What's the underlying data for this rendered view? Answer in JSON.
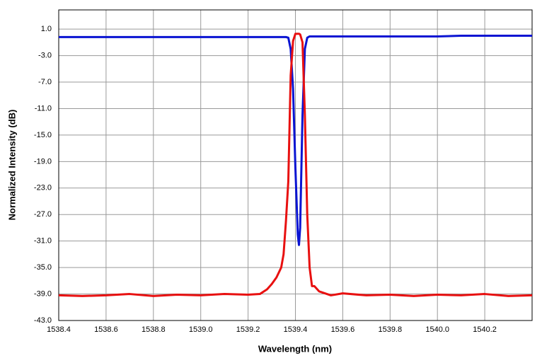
{
  "chart_data": {
    "type": "line",
    "x_label": "Wavelength (nm)",
    "y_label": "Normalized Intensity  (dB)",
    "x": [
      1538.4,
      1538.5,
      1538.6,
      1538.7,
      1538.8,
      1538.9,
      1539.0,
      1539.1,
      1539.2,
      1539.25,
      1539.28,
      1539.3,
      1539.32,
      1539.34,
      1539.35,
      1539.36,
      1539.37,
      1539.38,
      1539.39,
      1539.4,
      1539.41,
      1539.415,
      1539.42,
      1539.43,
      1539.44,
      1539.45,
      1539.46,
      1539.47,
      1539.48,
      1539.5,
      1539.55,
      1539.6,
      1539.7,
      1539.8,
      1539.9,
      1540.0,
      1540.1,
      1540.2,
      1540.3,
      1540.4
    ],
    "series": [
      {
        "color": "#0a14d2",
        "values": [
          -0.2,
          -0.2,
          -0.2,
          -0.2,
          -0.2,
          -0.2,
          -0.2,
          -0.2,
          -0.2,
          -0.2,
          -0.2,
          -0.2,
          -0.2,
          -0.2,
          -0.2,
          -0.2,
          -0.3,
          -2,
          -8,
          -20,
          -30,
          -31.6,
          -29,
          -12,
          -2,
          -0.3,
          -0.1,
          -0.1,
          -0.1,
          -0.1,
          -0.1,
          -0.1,
          -0.1,
          -0.1,
          -0.1,
          -0.1,
          0.0,
          0.0,
          0.0,
          0.0
        ]
      },
      {
        "color": "#e81010",
        "values": [
          -39.2,
          -39.3,
          -39.2,
          -39.0,
          -39.3,
          -39.1,
          -39.2,
          -39.0,
          -39.1,
          -39.0,
          -38.3,
          -37.5,
          -36.5,
          -35,
          -33,
          -28,
          -22,
          -6,
          -0.8,
          0.3,
          0.3,
          0.3,
          0.2,
          -1,
          -12,
          -27,
          -35,
          -37.8,
          -37.8,
          -38.6,
          -39.2,
          -38.9,
          -39.2,
          -39.1,
          -39.3,
          -39.1,
          -39.2,
          -39.0,
          -39.3,
          -39.2
        ]
      }
    ],
    "xlim": [
      1538.4,
      1540.4
    ],
    "xticks": [
      1538.4,
      1538.6,
      1538.8,
      {
        "value": 1539.0,
        "label": "1539.0"
      },
      1539.2,
      1539.4,
      1539.6,
      1539.8,
      {
        "value": 1540.0,
        "label": "1540.0"
      },
      1540.2
    ],
    "ylim": [
      -43,
      3.9
    ],
    "yticks": [
      {
        "value": 1,
        "label": "1.0"
      },
      {
        "value": -3,
        "label": "-3.0"
      },
      {
        "value": -7,
        "label": "-7.0"
      },
      {
        "value": -11,
        "label": "-11.0"
      },
      {
        "value": -15,
        "label": "-15.0"
      },
      {
        "value": -19,
        "label": "-19.0"
      },
      {
        "value": -23,
        "label": "-23.0"
      },
      {
        "value": -27,
        "label": "-27.0"
      },
      {
        "value": -31,
        "label": "-31.0"
      },
      {
        "value": -35,
        "label": "-35.0"
      },
      {
        "value": -39,
        "label": "-39.0"
      },
      {
        "value": -43,
        "label": "-43.0"
      }
    ],
    "grid": true
  }
}
